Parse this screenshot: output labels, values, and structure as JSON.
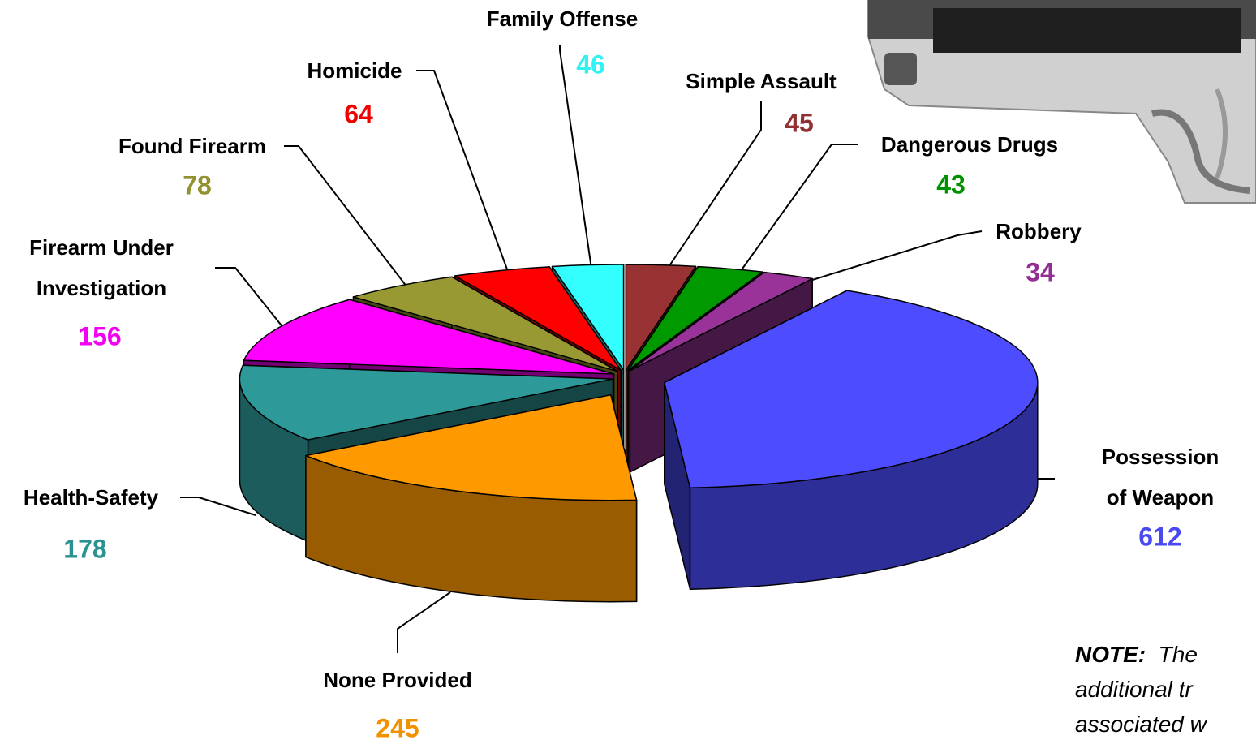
{
  "chart_data": {
    "type": "pie",
    "categories": [
      "Simple Assault",
      "Dangerous Drugs",
      "Robbery",
      "Possession of Weapon",
      "None Provided",
      "Health-Safety",
      "Firearm Under Investigation",
      "Found Firearm",
      "Homicide",
      "Family Offense"
    ],
    "values": [
      45,
      43,
      34,
      612,
      245,
      178,
      156,
      78,
      64,
      46
    ],
    "colors": [
      "#993333",
      "#009900",
      "#993399",
      "#4d4dff",
      "#ff9900",
      "#2e9999",
      "#ff00ff",
      "#999933",
      "#ff0000",
      "#33ffff"
    ]
  },
  "note": {
    "label": "NOTE:",
    "lines": [
      "The",
      "additional tr",
      "associated w"
    ]
  }
}
